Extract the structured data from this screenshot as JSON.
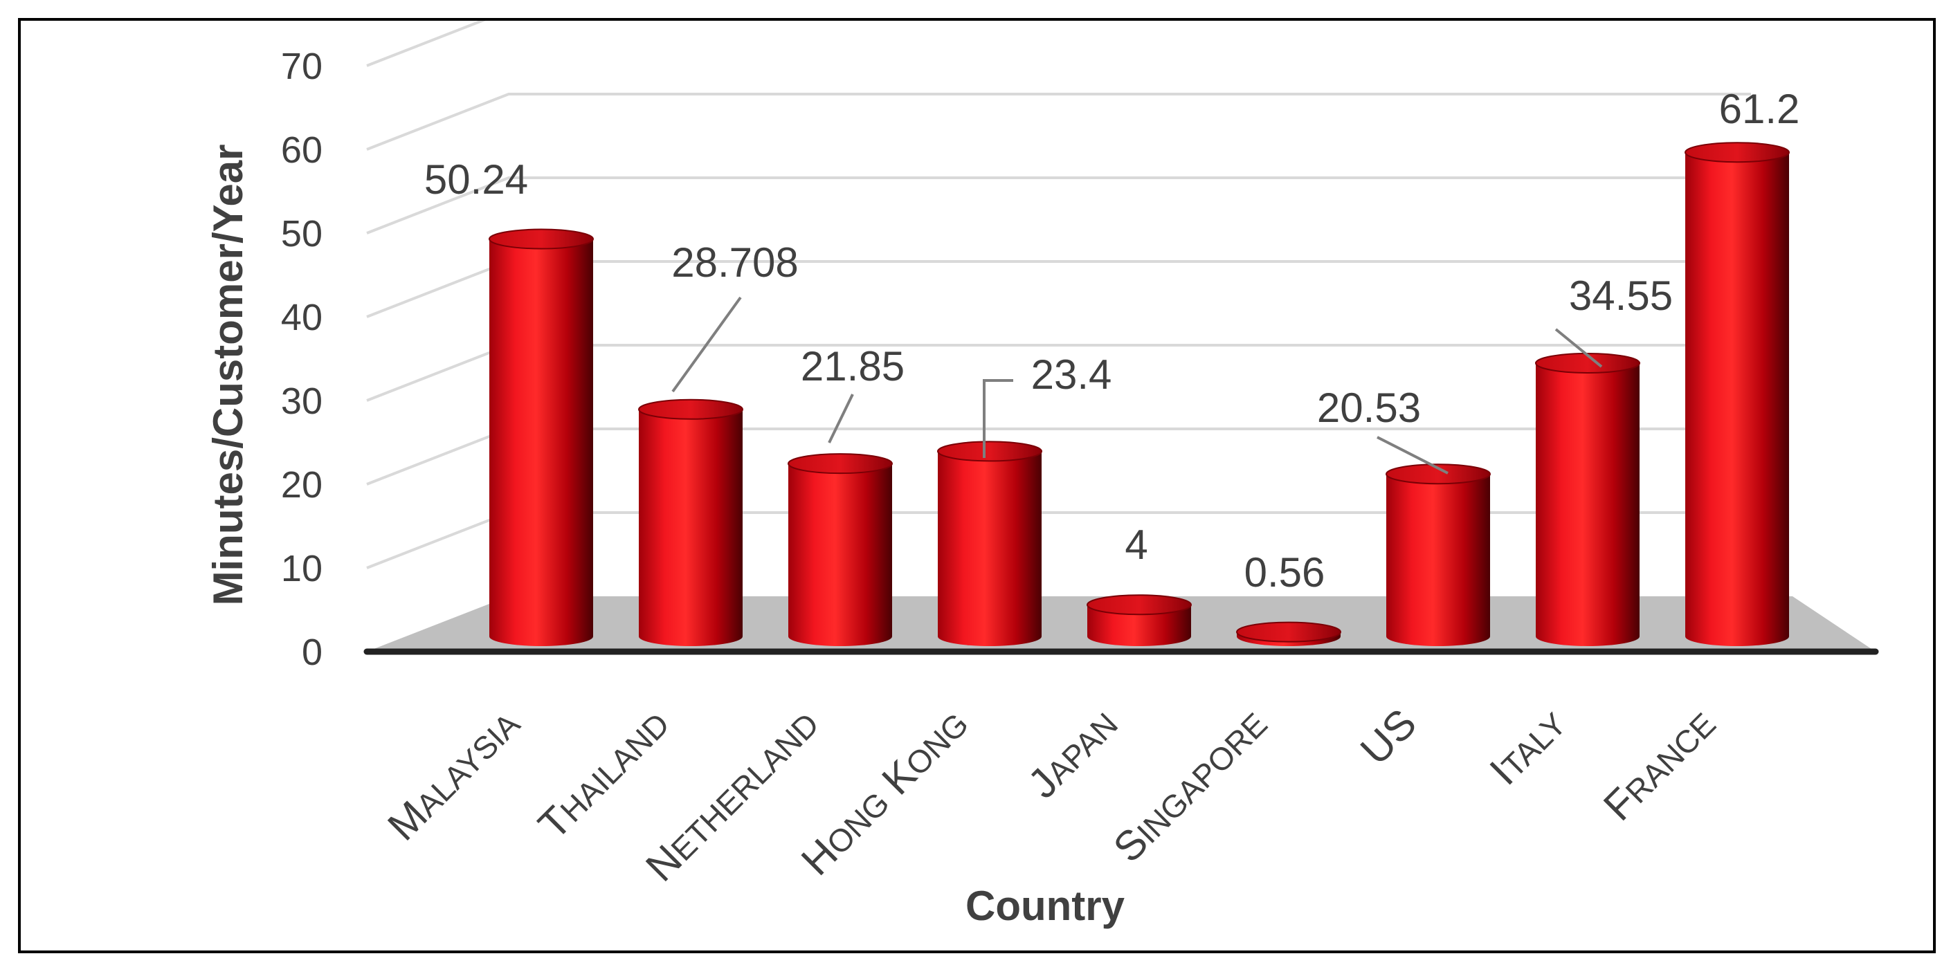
{
  "chart_data": {
    "type": "bar",
    "style": "3d-cylinder",
    "categories": [
      "Malaysia",
      "Thailand",
      "Netherland",
      "Hong Kong",
      "Japan",
      "Singapore",
      "US",
      "Italy",
      "France"
    ],
    "values": [
      50.24,
      28.708,
      21.85,
      23.4,
      4,
      0.56,
      20.53,
      34.55,
      61.2
    ],
    "data_labels": [
      "50.24",
      "28.708",
      "21.85",
      "23.4",
      "4",
      "0.56",
      "20.53",
      "34.55",
      "61.2"
    ],
    "title": "",
    "xlabel": "Country",
    "ylabel": "Minutes/Customer/Year",
    "ylim": [
      0,
      70
    ],
    "yticks": [
      "0",
      "10",
      "20",
      "30",
      "40",
      "50",
      "60",
      "70"
    ],
    "grid": true,
    "legend": "none",
    "bar_color": "#e8131b",
    "bar_dark": "#5a0004",
    "floor_color": "#bfbfbf"
  }
}
